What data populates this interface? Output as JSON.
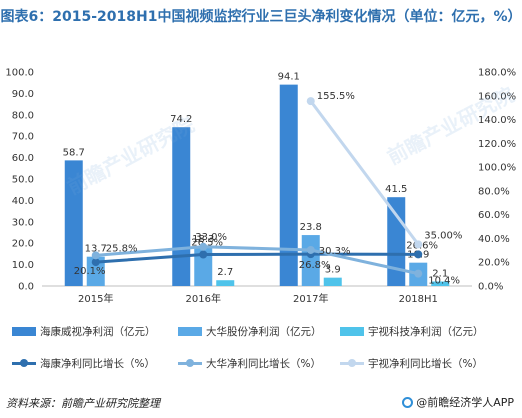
{
  "title": "图表6：2015-2018H1中国视频监控行业三巨头净利变化情况（单位：亿元，%）",
  "source": "资料来源：前瞻产业研究院整理",
  "brand": "@前瞻经济学人APP",
  "watermark": "前瞻产业研究院",
  "chart_data": {
    "type": "bar",
    "categories": [
      "2015年",
      "2016年",
      "2017年",
      "2018H1"
    ],
    "bar_series": [
      {
        "name": "海康威视净利润（亿元）",
        "values": [
          58.7,
          74.2,
          94.1,
          41.5
        ],
        "labels": [
          "58.7",
          "74.2",
          "94.1",
          "41.5"
        ],
        "color": "#3a86d3"
      },
      {
        "name": "大华股份净利润（亿元）",
        "values": [
          13.7,
          18.3,
          23.8,
          10.9
        ],
        "labels": [
          "13.7",
          "18.3",
          "23.8",
          "10.9"
        ],
        "color": "#5aa9e6"
      },
      {
        "name": "宇视科技净利润（亿元）",
        "values": [
          null,
          2.7,
          3.9,
          2.1
        ],
        "labels": [
          "",
          "2.7",
          "3.9",
          "2.1"
        ],
        "color": "#4fc3ea"
      }
    ],
    "line_series": [
      {
        "name": "海康净利同比增长（%）",
        "values": [
          20.1,
          26.5,
          26.8,
          26.6
        ],
        "labels": [
          "20.1%",
          "26.5%",
          "26.8%",
          "26.6%"
        ],
        "color": "#2e6fae"
      },
      {
        "name": "大华净利同比增长（%）",
        "values": [
          25.8,
          33.0,
          30.3,
          10.4
        ],
        "labels": [
          "25.8%",
          "33.0%",
          "30.3%",
          "10.4%"
        ],
        "color": "#7fb2dd"
      },
      {
        "name": "宇视净利同比增长（%）",
        "values": [
          null,
          null,
          155.5,
          35.0
        ],
        "labels": [
          "",
          "",
          "155.5%",
          "35.00%"
        ],
        "color": "#c2d7ee"
      }
    ],
    "y_left": {
      "min": 0,
      "max": 100,
      "ticks": [
        "0.0",
        "10.0",
        "20.0",
        "30.0",
        "40.0",
        "50.0",
        "60.0",
        "70.0",
        "80.0",
        "90.0",
        "100.0"
      ]
    },
    "y_right": {
      "min": 0,
      "max": 180,
      "ticks": [
        "0.0%",
        "20.0%",
        "40.0%",
        "60.0%",
        "80.0%",
        "100.0%",
        "120.0%",
        "140.0%",
        "160.0%",
        "180.0%"
      ]
    },
    "grid": false,
    "legend_position": "bottom"
  }
}
